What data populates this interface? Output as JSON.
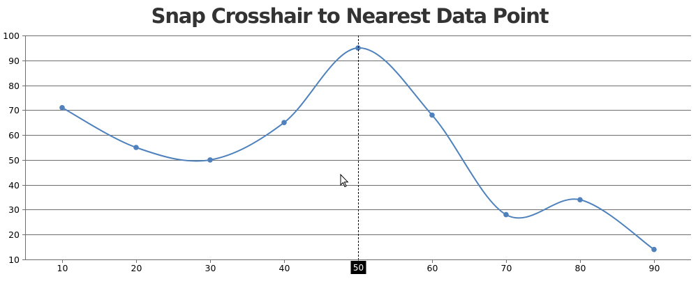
{
  "chart_data": {
    "type": "line",
    "title": "Snap Crosshair to Nearest Data Point",
    "xlabel": "",
    "ylabel": "",
    "x": [
      10,
      20,
      30,
      40,
      50,
      60,
      70,
      80,
      90
    ],
    "series": [
      {
        "values": [
          71,
          55,
          50,
          65,
          95,
          68,
          28,
          34,
          14
        ]
      }
    ],
    "line_style": "spline",
    "xlim": [
      5,
      95
    ],
    "ylim": [
      10,
      100
    ],
    "xticks": [
      10,
      20,
      30,
      40,
      50,
      60,
      70,
      80,
      90
    ],
    "yticks": [
      10,
      20,
      30,
      40,
      50,
      60,
      70,
      80,
      90,
      100
    ],
    "grid": "horizontal",
    "legend": "none",
    "crosshair": {
      "axis": "x",
      "value": 50,
      "label": "50",
      "snap": "nearest"
    },
    "colors": {
      "series": "#4f81bc",
      "gridline": "#6e6e6e",
      "title": "#333333",
      "crosshair_label_bg": "#000000",
      "crosshair_label_text": "#ffffff"
    }
  },
  "cursor_icon": "arrow-cursor-icon"
}
